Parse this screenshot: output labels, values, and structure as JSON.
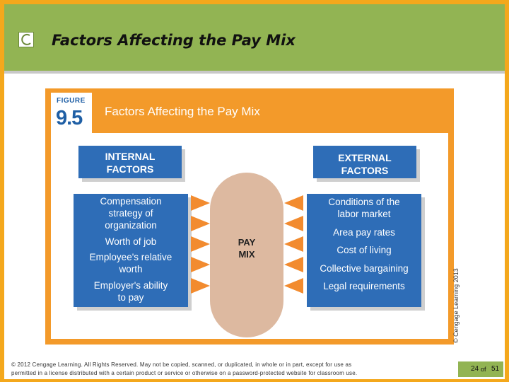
{
  "slide": {
    "title": "Factors Affecting the Pay Mix"
  },
  "figure": {
    "label_word": "FIGURE",
    "label_number": "9.5",
    "title": "Factors Affecting the Pay Mix",
    "internal_header": [
      "INTERNAL",
      "FACTORS"
    ],
    "external_header": [
      "EXTERNAL",
      "FACTORS"
    ],
    "internal_factors": [
      [
        "Compensation",
        "strategy of",
        "organization"
      ],
      [
        "Worth of job"
      ],
      [
        "Employee's relative",
        "worth"
      ],
      [
        "Employer's ability",
        "to pay"
      ]
    ],
    "external_factors": [
      [
        "Conditions of the",
        "labor market"
      ],
      [
        "Area pay rates"
      ],
      [
        "Cost of living"
      ],
      [
        "Collective bargaining"
      ],
      [
        "Legal requirements"
      ]
    ],
    "center_label": [
      "PAY",
      "MIX"
    ],
    "side_copyright": "© Cengage Learning 2013"
  },
  "footer": {
    "copyright_line1": "© 2012 Cengage Learning. All Rights Reserved. May not be copied, scanned, or duplicated, in whole or in part, except for use as",
    "copyright_line2": "permitted in a license distributed with a certain product or service or otherwise on a password-protected website for classroom use.",
    "page_current": "24",
    "page_of": "of",
    "page_total": "51"
  },
  "colors": {
    "frame": "#f4a81c",
    "title_bar": "#92b453",
    "figure_orange": "#f39a2a",
    "factor_blue": "#2e6db7",
    "pay_mix_fill": "#ddb9a0",
    "arrow": "#f28b2f"
  }
}
